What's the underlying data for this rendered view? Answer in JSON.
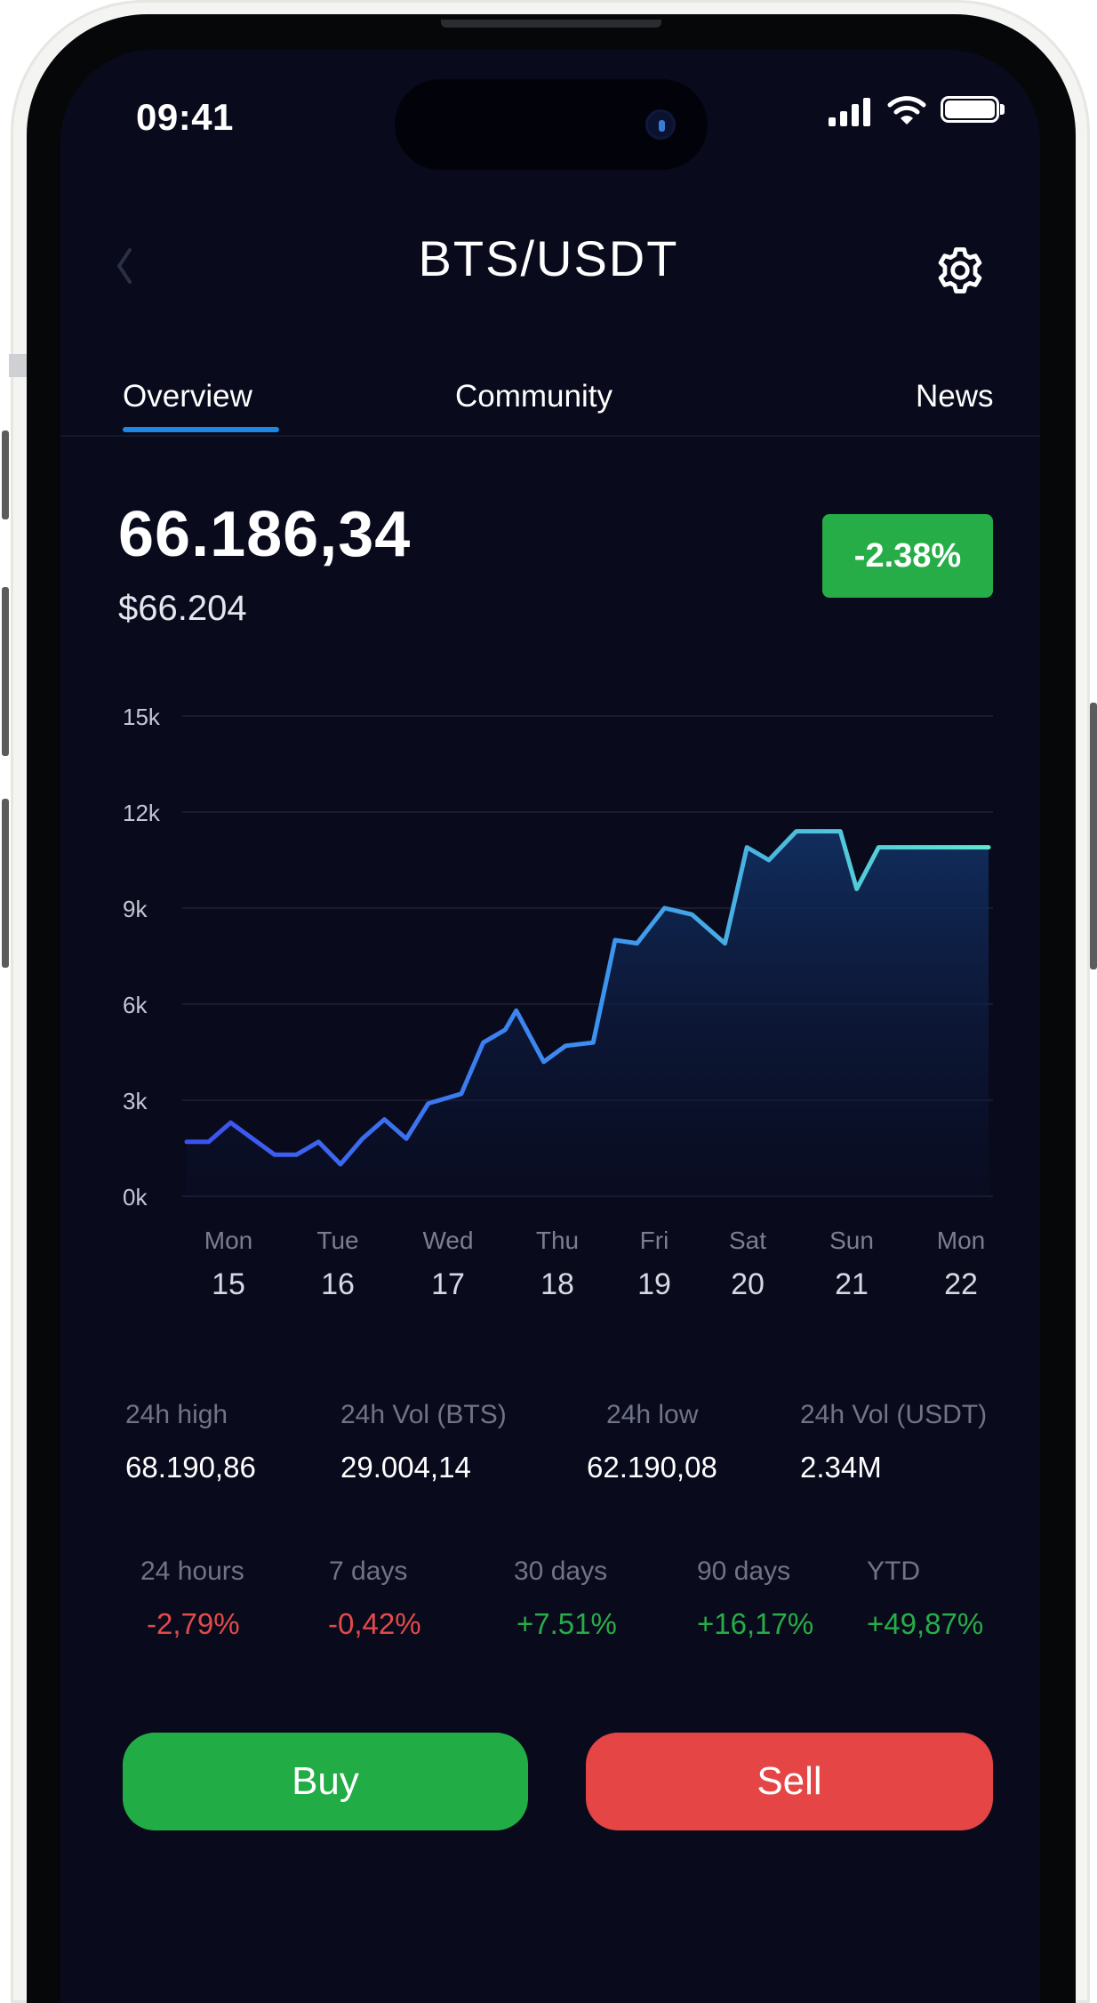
{
  "status_bar": {
    "time": "09:41"
  },
  "header": {
    "title": "BTS/USDT"
  },
  "tabs": [
    {
      "label": "Overview",
      "active": true
    },
    {
      "label": "Community",
      "active": false
    },
    {
      "label": "News",
      "active": false
    }
  ],
  "price": {
    "value": "66.186,34",
    "usd": "$66.204",
    "change": "-2.38%"
  },
  "chart_data": {
    "type": "area",
    "ytick_labels": [
      "0k",
      "3k",
      "6k",
      "9k",
      "12k",
      "15k"
    ],
    "ylim": [
      0,
      15000
    ],
    "x_weekdays": [
      "Mon",
      "Tue",
      "Wed",
      "Thu",
      "Fri",
      "Sat",
      "Sun",
      "Mon"
    ],
    "x_days": [
      "15",
      "16",
      "17",
      "18",
      "19",
      "20",
      "21",
      "22"
    ],
    "grid": true,
    "x": [
      15.0,
      15.2,
      15.4,
      15.8,
      16.0,
      16.2,
      16.4,
      16.6,
      16.8,
      17.0,
      17.2,
      17.5,
      17.7,
      17.9,
      18.0,
      18.25,
      18.45,
      18.7,
      18.9,
      19.1,
      19.35,
      19.6,
      19.9,
      20.1,
      20.3,
      20.55,
      20.75,
      20.95,
      21.1,
      21.3,
      21.55,
      21.85,
      22.1,
      22.3
    ],
    "y": [
      1700,
      1700,
      2300,
      1300,
      1300,
      1700,
      1000,
      1800,
      2400,
      1800,
      2900,
      3200,
      4800,
      5200,
      5800,
      4200,
      4700,
      4800,
      8000,
      7900,
      9000,
      8800,
      7900,
      10900,
      10500,
      11400,
      11400,
      11400,
      9600,
      10900,
      10900,
      10900,
      10900,
      10900
    ]
  },
  "stats": [
    {
      "label": "24h high",
      "value": "68.190,86"
    },
    {
      "label": "24h Vol (BTS)",
      "value": "29.004,14"
    },
    {
      "label": "24h low",
      "value": "62.190,08"
    },
    {
      "label": "24h Vol (USDT)",
      "value": "2.34M"
    }
  ],
  "performance": [
    {
      "label": "24 hours",
      "value": "-2,79%"
    },
    {
      "label": "7 days",
      "value": "-0,42%"
    },
    {
      "label": "30 days",
      "value": "+7.51%"
    },
    {
      "label": "90 days",
      "value": "+16,17%"
    },
    {
      "label": "YTD",
      "value": "+49,87%"
    }
  ],
  "actions": {
    "buy": "Buy",
    "sell": "Sell"
  },
  "colors": {
    "positive": "#27ad48",
    "negative": "#e34a4a",
    "accent": "#1f86e3",
    "line_start": "#3d4ff0",
    "line_end": "#5de8cf",
    "background": "#090b1c"
  },
  "icons": {
    "back": "chevron-left-icon",
    "settings": "gear-icon"
  }
}
